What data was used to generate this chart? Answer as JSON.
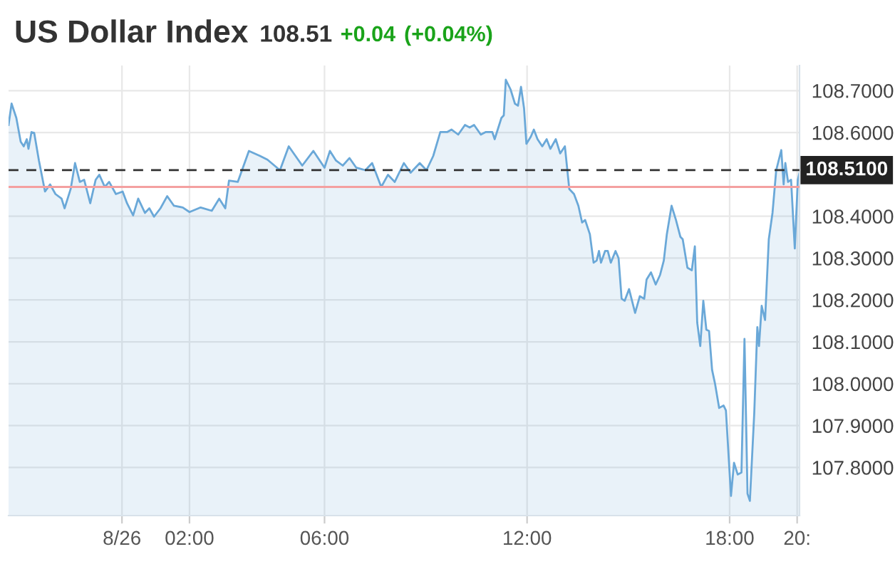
{
  "chart_data": {
    "type": "area",
    "title": "US Dollar Index",
    "annotations": [
      "108.51",
      "+0.04",
      "(+0.04%)"
    ],
    "series": [
      {
        "color": "#6aa8d8",
        "x": [
          -3.36,
          -3.27,
          -3.13,
          -3.0,
          -2.91,
          -2.82,
          -2.77,
          -2.68,
          -2.6,
          -2.46,
          -2.28,
          -2.13,
          -1.97,
          -1.79,
          -1.7,
          -1.52,
          -1.39,
          -1.25,
          -1.12,
          -0.94,
          -0.78,
          -0.67,
          -0.51,
          -0.38,
          -0.18,
          0.02,
          0.15,
          0.33,
          0.48,
          0.68,
          0.81,
          0.95,
          1.14,
          1.34,
          1.54,
          1.8,
          2.0,
          2.33,
          2.66,
          2.88,
          3.06,
          3.17,
          3.43,
          3.76,
          4.09,
          4.31,
          4.68,
          4.94,
          5.34,
          5.67,
          6.0,
          6.16,
          6.34,
          6.54,
          6.74,
          6.94,
          7.21,
          7.41,
          7.68,
          7.88,
          8.08,
          8.35,
          8.55,
          8.82,
          9.02,
          9.22,
          9.43,
          9.63,
          9.76,
          9.96,
          10.16,
          10.3,
          10.43,
          10.63,
          10.77,
          10.97,
          11.04,
          11.24,
          11.31,
          11.37,
          11.51,
          11.64,
          11.73,
          11.82,
          11.91,
          11.98,
          12.11,
          12.2,
          12.31,
          12.45,
          12.58,
          12.69,
          12.85,
          12.98,
          13.12,
          13.25,
          13.39,
          13.52,
          13.63,
          13.72,
          13.86,
          13.97,
          14.06,
          14.13,
          14.19,
          14.31,
          14.39,
          14.48,
          14.62,
          14.71,
          14.8,
          14.89,
          15.02,
          15.2,
          15.34,
          15.47,
          15.54,
          15.67,
          15.81,
          15.94,
          16.05,
          16.14,
          16.28,
          16.41,
          16.54,
          16.61,
          16.75,
          16.88,
          16.97,
          17.04,
          17.13,
          17.22,
          17.31,
          17.39,
          17.48,
          17.57,
          17.69,
          17.82,
          17.89,
          18.04,
          18.13,
          18.24,
          18.35,
          18.44,
          18.53,
          18.6,
          18.73,
          18.82,
          18.87,
          18.95,
          19.05,
          19.16,
          19.27,
          19.38,
          19.53,
          19.6,
          19.65,
          19.73,
          19.82,
          19.93,
          20.02,
          20.07
        ],
        "values": [
          108.618,
          108.669,
          108.635,
          108.578,
          108.567,
          108.584,
          108.561,
          108.601,
          108.599,
          108.533,
          108.459,
          108.476,
          108.453,
          108.442,
          108.419,
          108.465,
          108.527,
          108.482,
          108.487,
          108.431,
          108.487,
          108.499,
          108.47,
          108.482,
          108.453,
          108.459,
          108.431,
          108.402,
          108.442,
          108.408,
          108.419,
          108.399,
          108.419,
          108.448,
          108.425,
          108.421,
          108.41,
          108.421,
          108.413,
          108.442,
          108.419,
          108.485,
          108.482,
          108.556,
          108.544,
          108.535,
          108.51,
          108.567,
          108.521,
          108.556,
          108.516,
          108.556,
          108.533,
          108.521,
          108.539,
          108.516,
          108.51,
          108.527,
          108.47,
          108.499,
          108.482,
          108.527,
          108.504,
          108.527,
          108.51,
          108.544,
          108.601,
          108.601,
          108.607,
          108.595,
          108.618,
          108.612,
          108.618,
          108.595,
          108.601,
          108.601,
          108.584,
          108.635,
          108.641,
          108.726,
          108.703,
          108.669,
          108.664,
          108.709,
          108.658,
          108.573,
          108.59,
          108.607,
          108.584,
          108.567,
          108.584,
          108.561,
          108.584,
          108.55,
          108.567,
          108.465,
          108.453,
          108.425,
          108.385,
          108.391,
          108.357,
          108.289,
          108.294,
          108.317,
          108.289,
          108.317,
          108.317,
          108.289,
          108.317,
          108.3,
          108.203,
          108.198,
          108.226,
          108.169,
          108.209,
          108.203,
          108.249,
          108.266,
          108.237,
          108.26,
          108.294,
          108.357,
          108.425,
          108.391,
          108.351,
          108.345,
          108.277,
          108.271,
          108.328,
          108.146,
          108.09,
          108.198,
          108.129,
          108.126,
          108.033,
          107.999,
          107.942,
          107.948,
          107.936,
          107.732,
          107.811,
          107.783,
          107.788,
          108.107,
          107.737,
          107.72,
          107.931,
          108.135,
          108.09,
          108.186,
          108.152,
          108.345,
          108.408,
          108.51,
          108.558,
          108.476,
          108.527,
          108.482,
          108.487,
          108.323,
          108.487,
          108.504
        ]
      }
    ],
    "xlim": [
      -3.36,
      20.07
    ],
    "xticks": [
      {
        "value": 0,
        "label": "8/26"
      },
      {
        "value": 2,
        "label": "02:00"
      },
      {
        "value": 6,
        "label": "06:00"
      },
      {
        "value": 12,
        "label": "12:00"
      },
      {
        "value": 18,
        "label": "18:00"
      },
      {
        "value": 20,
        "label": "20:"
      }
    ],
    "ylim": [
      107.685,
      108.76
    ],
    "yticks": [
      {
        "value": 107.8,
        "label": "107.8000"
      },
      {
        "value": 107.9,
        "label": "107.9000"
      },
      {
        "value": 108.0,
        "label": "108.0000"
      },
      {
        "value": 108.1,
        "label": "108.1000"
      },
      {
        "value": 108.2,
        "label": "108.2000"
      },
      {
        "value": 108.3,
        "label": "108.3000"
      },
      {
        "value": 108.4,
        "label": "108.4000"
      },
      {
        "value": 108.6,
        "label": "108.6000"
      },
      {
        "value": 108.7,
        "label": "108.7000"
      }
    ],
    "ref_lines": [
      {
        "axis": "y",
        "value": 108.51,
        "label": "108.5100",
        "color": "#333333",
        "line_style": "dashed"
      },
      {
        "axis": "y",
        "value": 108.47,
        "color": "#f4a0a0",
        "line_style": "solid"
      }
    ],
    "grid": true,
    "legend": false,
    "marker": "none",
    "line_style": "solid"
  }
}
